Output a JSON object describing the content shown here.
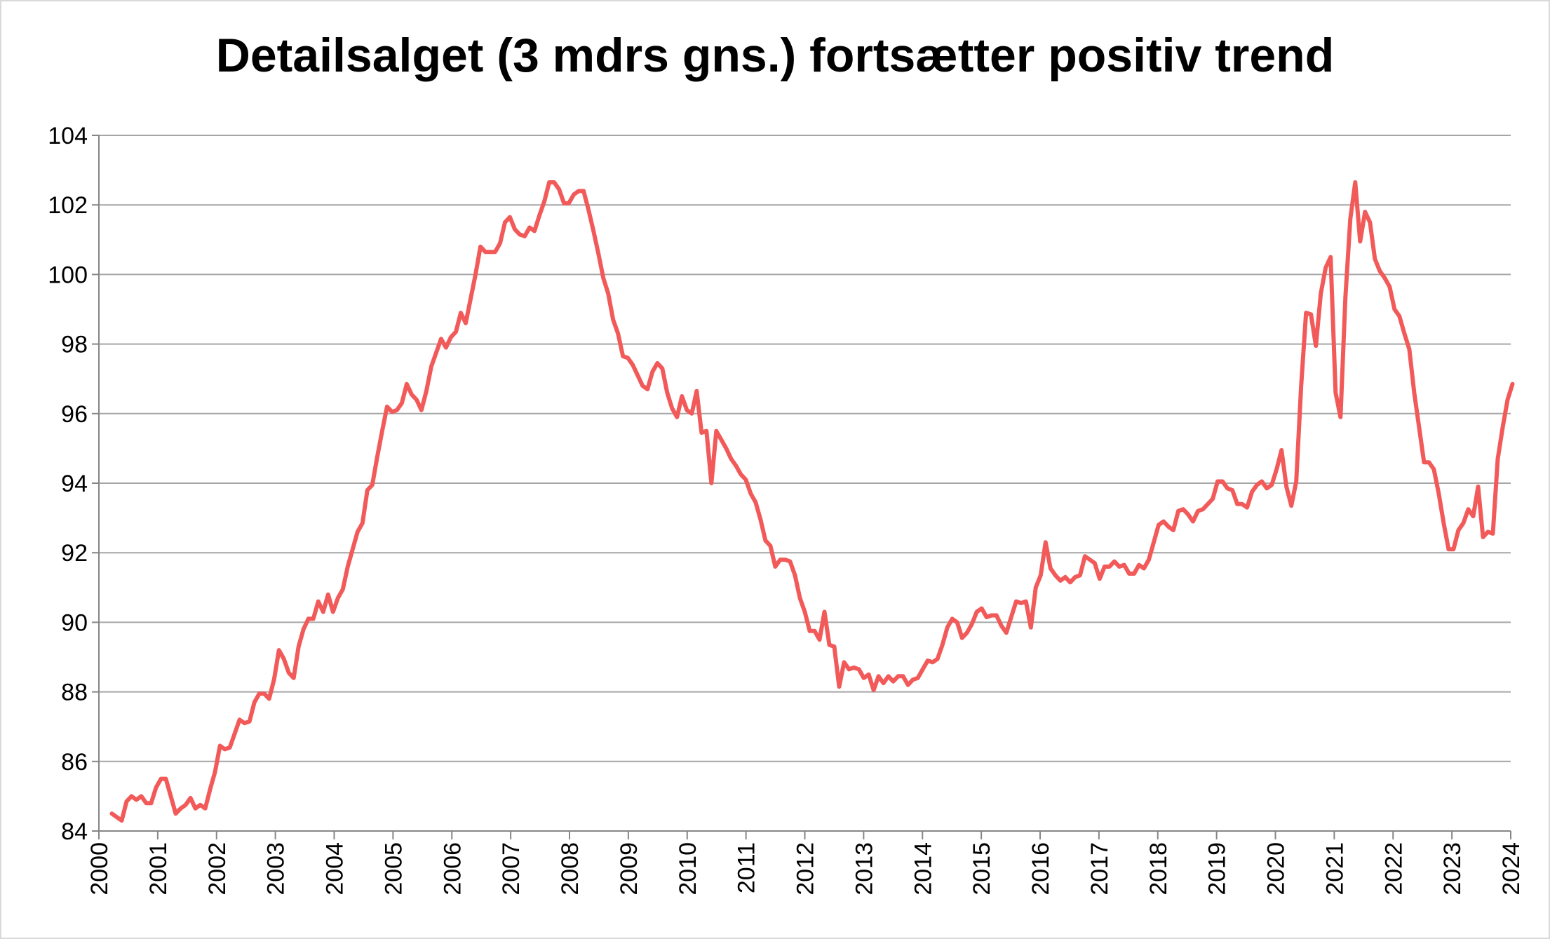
{
  "chart_data": {
    "type": "line",
    "title": "Detailsalget (3 mdrs gns.) fortsætter positiv trend",
    "xlabel": "",
    "ylabel": "",
    "ylim": [
      84,
      104
    ],
    "xlim": [
      2000,
      2024
    ],
    "y_ticks": [
      "84",
      "86",
      "88",
      "90",
      "92",
      "94",
      "96",
      "98",
      "100",
      "102",
      "104"
    ],
    "x_ticks": [
      "2000",
      "2001",
      "2002",
      "2003",
      "2004",
      "2005",
      "2006",
      "2007",
      "2008",
      "2009",
      "2010",
      "2011",
      "2012",
      "2013",
      "2014",
      "2015",
      "2016",
      "2017",
      "2018",
      "2019",
      "2020",
      "2021",
      "2022",
      "2023",
      "2024"
    ],
    "grid": "horizontal",
    "legend": "none",
    "series": [
      {
        "name": "Detailsalg (3 mdrs gns.)",
        "color": "#F25A5A",
        "x_start": 2000.22,
        "x_end": 2024.03,
        "frequency": "monthly",
        "values": [
          84.5,
          84.4,
          84.3,
          84.85,
          85.0,
          84.9,
          85.0,
          84.8,
          84.8,
          85.25,
          85.5,
          85.5,
          85.0,
          84.5,
          84.65,
          84.75,
          84.95,
          84.65,
          84.75,
          84.65,
          85.2,
          85.7,
          86.45,
          86.35,
          86.4,
          86.8,
          87.2,
          87.1,
          87.15,
          87.7,
          87.95,
          87.95,
          87.8,
          88.35,
          89.2,
          88.95,
          88.55,
          88.4,
          89.3,
          89.8,
          90.1,
          90.1,
          90.6,
          90.3,
          90.8,
          90.3,
          90.7,
          90.95,
          91.6,
          92.1,
          92.6,
          92.85,
          93.8,
          93.95,
          94.75,
          95.5,
          96.2,
          96.05,
          96.1,
          96.3,
          96.85,
          96.55,
          96.4,
          96.1,
          96.65,
          97.35,
          97.75,
          98.15,
          97.9,
          98.2,
          98.35,
          98.9,
          98.6,
          99.3,
          100.0,
          100.8,
          100.65,
          100.65,
          100.65,
          100.9,
          101.5,
          101.65,
          101.3,
          101.15,
          101.1,
          101.35,
          101.25,
          101.7,
          102.1,
          102.65,
          102.65,
          102.45,
          102.05,
          102.05,
          102.3,
          102.4,
          102.4,
          101.85,
          101.25,
          100.6,
          99.9,
          99.45,
          98.7,
          98.3,
          97.65,
          97.6,
          97.4,
          97.1,
          96.8,
          96.7,
          97.2,
          97.45,
          97.3,
          96.6,
          96.15,
          95.9,
          96.5,
          96.1,
          96.0,
          96.65,
          95.45,
          95.5,
          94.0,
          95.5,
          95.25,
          95.0,
          94.7,
          94.5,
          94.25,
          94.1,
          93.7,
          93.45,
          92.95,
          92.35,
          92.2,
          91.6,
          91.8,
          91.8,
          91.75,
          91.35,
          90.7,
          90.3,
          89.75,
          89.75,
          89.5,
          90.3,
          89.35,
          89.3,
          88.15,
          88.85,
          88.65,
          88.7,
          88.65,
          88.4,
          88.5,
          88.05,
          88.45,
          88.25,
          88.45,
          88.3,
          88.45,
          88.45,
          88.2,
          88.35,
          88.4,
          88.65,
          88.9,
          88.85,
          88.95,
          89.35,
          89.85,
          90.1,
          90.0,
          89.55,
          89.7,
          89.95,
          90.3,
          90.4,
          90.15,
          90.2,
          90.2,
          89.9,
          89.7,
          90.15,
          90.6,
          90.55,
          90.6,
          89.85,
          91.0,
          91.35,
          92.3,
          91.55,
          91.35,
          91.2,
          91.3,
          91.15,
          91.3,
          91.35,
          91.9,
          91.8,
          91.7,
          91.25,
          91.6,
          91.6,
          91.75,
          91.6,
          91.65,
          91.4,
          91.4,
          91.65,
          91.55,
          91.8,
          92.3,
          92.8,
          92.9,
          92.75,
          92.65,
          93.2,
          93.25,
          93.1,
          92.9,
          93.2,
          93.25,
          93.4,
          93.55,
          94.05,
          94.05,
          93.85,
          93.8,
          93.4,
          93.4,
          93.3,
          93.75,
          93.95,
          94.05,
          93.85,
          93.95,
          94.4,
          94.95,
          93.9,
          93.35,
          94.05,
          96.8,
          98.9,
          98.85,
          97.95,
          99.45,
          100.2,
          100.5,
          96.6,
          95.9,
          99.35,
          101.6,
          102.65,
          100.95,
          101.8,
          101.5,
          100.45,
          100.1,
          99.9,
          99.65,
          99.0,
          98.8,
          98.3,
          97.85,
          96.6,
          95.6,
          94.6,
          94.6,
          94.4,
          93.7,
          92.85,
          92.1,
          92.1,
          92.65,
          92.85,
          93.25,
          93.05,
          93.9,
          92.45,
          92.6,
          92.55,
          94.7,
          95.6,
          96.4,
          96.85
        ]
      }
    ]
  }
}
